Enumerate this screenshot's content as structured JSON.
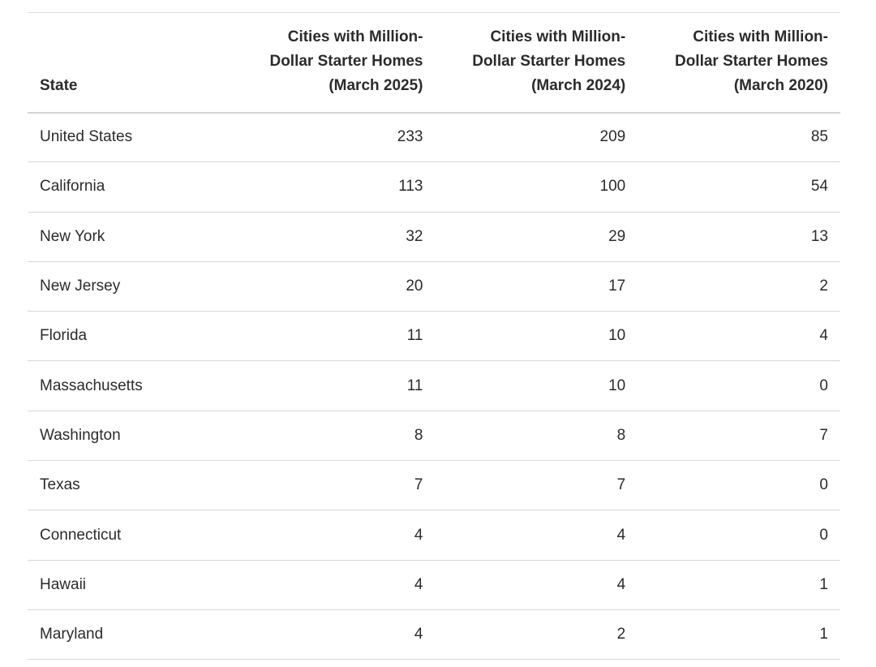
{
  "table": {
    "headers": [
      "State",
      "Cities with Million-Dollar Starter Homes (March 2025)",
      "Cities with Million-Dollar Starter Homes (March 2024)",
      "Cities with Million-Dollar Starter Homes (March 2020)"
    ],
    "rows": [
      [
        "United States",
        233,
        209,
        85
      ],
      [
        "California",
        113,
        100,
        54
      ],
      [
        "New York",
        32,
        29,
        13
      ],
      [
        "New Jersey",
        20,
        17,
        2
      ],
      [
        "Florida",
        11,
        10,
        4
      ],
      [
        "Massachusetts",
        11,
        10,
        0
      ],
      [
        "Washington",
        8,
        8,
        7
      ],
      [
        "Texas",
        7,
        7,
        0
      ],
      [
        "Connecticut",
        4,
        4,
        0
      ],
      [
        "Hawaii",
        4,
        4,
        1
      ],
      [
        "Maryland",
        4,
        2,
        1
      ]
    ]
  }
}
